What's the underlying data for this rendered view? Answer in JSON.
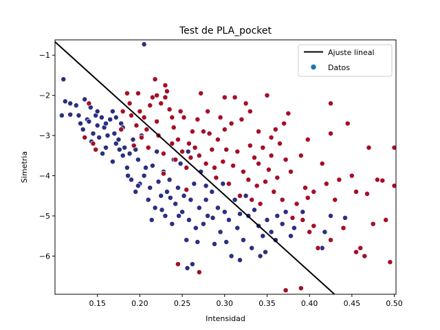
{
  "chart_data": {
    "type": "scatter",
    "title": "Test de PLA_pocket",
    "xlabel": "Intensidad",
    "ylabel": "Simetria",
    "xlim": [
      0.1,
      0.502
    ],
    "ylim": [
      -6.95,
      -0.62
    ],
    "x_ticks": [
      0.15,
      0.2,
      0.25,
      0.3,
      0.35,
      0.4,
      0.45,
      0.5
    ],
    "x_tick_labels": [
      "0.15",
      "0.20",
      "0.25",
      "0.30",
      "0.35",
      "0.40",
      "0.45",
      "0.50"
    ],
    "y_ticks": [
      -1,
      -2,
      -3,
      -4,
      -5,
      -6
    ],
    "y_tick_labels": [
      "−1",
      "−2",
      "−3",
      "−4",
      "−5",
      "−6"
    ],
    "grid": false,
    "legend_position": "top-right",
    "legend": [
      {
        "label": "Ajuste lineal",
        "kind": "line",
        "color": "#000000"
      },
      {
        "label": "Datos",
        "kind": "marker",
        "color": "#1f77b4"
      }
    ],
    "fit_line": {
      "x": [
        0.1,
        0.4295
      ],
      "y": [
        -0.67,
        -6.95
      ]
    },
    "colors": {
      "class_a": "#2b2f7f",
      "class_b": "#a50f26",
      "fit_line": "#000000",
      "edge": "#ffffff"
    },
    "series": [
      {
        "class": "class_a",
        "points": [
          [
            0.108,
            -2.5
          ],
          [
            0.118,
            -2.48
          ],
          [
            0.125,
            -2.25
          ],
          [
            0.128,
            -2.5
          ],
          [
            0.133,
            -2.85
          ],
          [
            0.138,
            -2.6
          ],
          [
            0.14,
            -2.65
          ],
          [
            0.142,
            -2.3
          ],
          [
            0.145,
            -2.95
          ],
          [
            0.148,
            -2.5
          ],
          [
            0.15,
            -2.75
          ],
          [
            0.152,
            -3.05
          ],
          [
            0.155,
            -2.55
          ],
          [
            0.158,
            -2.8
          ],
          [
            0.16,
            -3.3
          ],
          [
            0.162,
            -3.0
          ],
          [
            0.165,
            -2.6
          ],
          [
            0.168,
            -2.4
          ],
          [
            0.17,
            -2.95
          ],
          [
            0.172,
            -3.2
          ],
          [
            0.175,
            -3.1
          ],
          [
            0.178,
            -2.7
          ],
          [
            0.18,
            -3.5
          ],
          [
            0.182,
            -3.3
          ],
          [
            0.185,
            -3.8
          ],
          [
            0.188,
            -3.45
          ],
          [
            0.19,
            -4.1
          ],
          [
            0.192,
            -3.1
          ],
          [
            0.195,
            -4.4
          ],
          [
            0.198,
            -3.6
          ],
          [
            0.2,
            -4.2
          ],
          [
            0.202,
            -3.0
          ],
          [
            0.205,
            -4.0
          ],
          [
            0.207,
            -3.8
          ],
          [
            0.21,
            -4.6
          ],
          [
            0.212,
            -4.3
          ],
          [
            0.214,
            -5.1
          ],
          [
            0.218,
            -4.8
          ],
          [
            0.22,
            -3.4
          ],
          [
            0.222,
            -4.15
          ],
          [
            0.225,
            -4.5
          ],
          [
            0.228,
            -3.9
          ],
          [
            0.23,
            -5.0
          ],
          [
            0.232,
            -4.4
          ],
          [
            0.235,
            -4.1
          ],
          [
            0.238,
            -5.2
          ],
          [
            0.24,
            -3.6
          ],
          [
            0.242,
            -4.7
          ],
          [
            0.245,
            -4.3
          ],
          [
            0.248,
            -3.7
          ],
          [
            0.25,
            -4.9
          ],
          [
            0.252,
            -4.5
          ],
          [
            0.255,
            -5.6
          ],
          [
            0.257,
            -3.4
          ],
          [
            0.258,
            -5.1
          ],
          [
            0.26,
            -4.6
          ],
          [
            0.262,
            -6.2
          ],
          [
            0.264,
            -4.2
          ],
          [
            0.266,
            -5.3
          ],
          [
            0.27,
            -4.8
          ],
          [
            0.272,
            -3.9
          ],
          [
            0.275,
            -5.2
          ],
          [
            0.278,
            -4.6
          ],
          [
            0.28,
            -5.0
          ],
          [
            0.285,
            -4.4
          ],
          [
            0.288,
            -5.7
          ],
          [
            0.292,
            -4.8
          ],
          [
            0.295,
            -5.4
          ],
          [
            0.298,
            -4.2
          ],
          [
            0.3,
            -4.9
          ],
          [
            0.305,
            -5.1
          ],
          [
            0.308,
            -6.0
          ],
          [
            0.312,
            -4.6
          ],
          [
            0.315,
            -5.3
          ],
          [
            0.318,
            -4.95
          ],
          [
            0.322,
            -5.6
          ],
          [
            0.325,
            -4.5
          ],
          [
            0.328,
            -5.0
          ],
          [
            0.332,
            -5.8
          ],
          [
            0.335,
            -4.85
          ],
          [
            0.34,
            -5.25
          ],
          [
            0.345,
            -5.5
          ],
          [
            0.35,
            -5.1
          ],
          [
            0.355,
            -5.4
          ],
          [
            0.36,
            -5.6
          ],
          [
            0.362,
            -5.0
          ],
          [
            0.368,
            -5.2
          ],
          [
            0.372,
            -4.9
          ],
          [
            0.382,
            -5.3
          ],
          [
            0.392,
            -4.9
          ],
          [
            0.415,
            -5.8
          ],
          [
            0.418,
            -5.4
          ],
          [
            0.425,
            -5.0
          ],
          [
            0.442,
            -5.05
          ],
          [
            0.118,
            -2.2
          ],
          [
            0.135,
            -2.1
          ],
          [
            0.15,
            -2.4
          ],
          [
            0.16,
            -2.7
          ],
          [
            0.172,
            -2.55
          ],
          [
            0.18,
            -2.8
          ],
          [
            0.195,
            -3.35
          ],
          [
            0.205,
            -0.73
          ],
          [
            0.11,
            -1.6
          ],
          [
            0.112,
            -2.15
          ],
          [
            0.13,
            -2.7
          ],
          [
            0.143,
            -3.15
          ],
          [
            0.156,
            -3.45
          ],
          [
            0.168,
            -3.65
          ],
          [
            0.176,
            -3.35
          ],
          [
            0.186,
            -4.0
          ],
          [
            0.198,
            -4.25
          ],
          [
            0.215,
            -3.75
          ],
          [
            0.226,
            -4.85
          ],
          [
            0.236,
            -4.55
          ],
          [
            0.246,
            -5.0
          ],
          [
            0.256,
            -6.3
          ],
          [
            0.268,
            -5.65
          ],
          [
            0.278,
            -4.25
          ],
          [
            0.286,
            -5.05
          ],
          [
            0.302,
            -5.65
          ],
          [
            0.318,
            -6.1
          ],
          [
            0.342,
            -6.0
          ],
          [
            0.348,
            -5.9
          ],
          [
            0.378,
            -5.5
          ]
        ]
      },
      {
        "class": "class_b",
        "points": [
          [
            0.135,
            -3.05
          ],
          [
            0.14,
            -2.2
          ],
          [
            0.145,
            -3.2
          ],
          [
            0.148,
            -3.35
          ],
          [
            0.178,
            -2.85
          ],
          [
            0.18,
            -2.4
          ],
          [
            0.185,
            -1.95
          ],
          [
            0.188,
            -2.2
          ],
          [
            0.19,
            -2.5
          ],
          [
            0.193,
            -3.25
          ],
          [
            0.196,
            -2.75
          ],
          [
            0.198,
            -1.95
          ],
          [
            0.2,
            -2.4
          ],
          [
            0.202,
            -3.05
          ],
          [
            0.205,
            -2.55
          ],
          [
            0.208,
            -2.85
          ],
          [
            0.21,
            -3.3
          ],
          [
            0.212,
            -2.25
          ],
          [
            0.215,
            -2.05
          ],
          [
            0.218,
            -1.6
          ],
          [
            0.22,
            -2.65
          ],
          [
            0.222,
            -3.0
          ],
          [
            0.225,
            -2.2
          ],
          [
            0.228,
            -3.45
          ],
          [
            0.23,
            -2.05
          ],
          [
            0.232,
            -1.9
          ],
          [
            0.235,
            -2.35
          ],
          [
            0.238,
            -3.2
          ],
          [
            0.24,
            -2.8
          ],
          [
            0.242,
            -3.6
          ],
          [
            0.245,
            -3.1
          ],
          [
            0.248,
            -2.4
          ],
          [
            0.25,
            -3.4
          ],
          [
            0.252,
            -2.55
          ],
          [
            0.255,
            -3.8
          ],
          [
            0.258,
            -3.2
          ],
          [
            0.26,
            -3.55
          ],
          [
            0.262,
            -2.9
          ],
          [
            0.265,
            -3.3
          ],
          [
            0.268,
            -2.6
          ],
          [
            0.27,
            -3.5
          ],
          [
            0.272,
            -1.95
          ],
          [
            0.275,
            -2.9
          ],
          [
            0.278,
            -3.7
          ],
          [
            0.28,
            -2.4
          ],
          [
            0.282,
            -2.95
          ],
          [
            0.285,
            -3.35
          ],
          [
            0.288,
            -3.8
          ],
          [
            0.29,
            -4.05
          ],
          [
            0.292,
            -3.1
          ],
          [
            0.295,
            -2.55
          ],
          [
            0.298,
            -3.65
          ],
          [
            0.3,
            -2.85
          ],
          [
            0.302,
            -3.35
          ],
          [
            0.305,
            -4.2
          ],
          [
            0.308,
            -2.7
          ],
          [
            0.31,
            -3.75
          ],
          [
            0.312,
            -2.05
          ],
          [
            0.315,
            -3.4
          ],
          [
            0.318,
            -4.5
          ],
          [
            0.32,
            -2.6
          ],
          [
            0.322,
            -3.9
          ],
          [
            0.325,
            -2.2
          ],
          [
            0.328,
            -4.1
          ],
          [
            0.33,
            -3.25
          ],
          [
            0.332,
            -4.6
          ],
          [
            0.335,
            -3.55
          ],
          [
            0.338,
            -4.25
          ],
          [
            0.34,
            -2.9
          ],
          [
            0.342,
            -4.7
          ],
          [
            0.345,
            -3.3
          ],
          [
            0.348,
            -4.15
          ],
          [
            0.35,
            -2.0
          ],
          [
            0.352,
            -3.85
          ],
          [
            0.355,
            -3.5
          ],
          [
            0.358,
            -4.4
          ],
          [
            0.36,
            -2.85
          ],
          [
            0.362,
            -4.05
          ],
          [
            0.365,
            -3.2
          ],
          [
            0.368,
            -4.6
          ],
          [
            0.37,
            -2.7
          ],
          [
            0.372,
            -3.6
          ],
          [
            0.375,
            -2.45
          ],
          [
            0.378,
            -3.9
          ],
          [
            0.38,
            -5.05
          ],
          [
            0.385,
            -4.7
          ],
          [
            0.39,
            -3.5
          ],
          [
            0.392,
            -5.1
          ],
          [
            0.395,
            -4.3
          ],
          [
            0.398,
            -3.1
          ],
          [
            0.4,
            -5.4
          ],
          [
            0.405,
            -4.4
          ],
          [
            0.41,
            -5.8
          ],
          [
            0.415,
            -3.7
          ],
          [
            0.42,
            -4.2
          ],
          [
            0.425,
            -2.95
          ],
          [
            0.43,
            -4.6
          ],
          [
            0.435,
            -4.1
          ],
          [
            0.44,
            -5.3
          ],
          [
            0.445,
            -2.7
          ],
          [
            0.45,
            -4.0
          ],
          [
            0.455,
            -4.4
          ],
          [
            0.46,
            -5.8
          ],
          [
            0.465,
            -6.0
          ],
          [
            0.47,
            -3.3
          ],
          [
            0.475,
            -5.2
          ],
          [
            0.48,
            -4.1
          ],
          [
            0.49,
            -5.1
          ],
          [
            0.495,
            -6.15
          ],
          [
            0.5,
            -3.3
          ],
          [
            0.5,
            -4.25
          ],
          [
            0.372,
            -6.85
          ],
          [
            0.39,
            -6.8
          ],
          [
            0.27,
            -6.4
          ],
          [
            0.245,
            -6.2
          ],
          [
            0.22,
            -2.0
          ],
          [
            0.23,
            -1.75
          ],
          [
            0.238,
            -2.55
          ],
          [
            0.228,
            -3.95
          ],
          [
            0.255,
            -4.35
          ],
          [
            0.3,
            -2.05
          ],
          [
            0.34,
            -3.7
          ],
          [
            0.355,
            -3.05
          ],
          [
            0.33,
            -2.4
          ],
          [
            0.398,
            -4.55
          ],
          [
            0.405,
            -5.25
          ],
          [
            0.425,
            -2.2
          ],
          [
            0.468,
            -4.45
          ],
          [
            0.486,
            -4.12
          ],
          [
            0.455,
            -5.9
          ],
          [
            0.425,
            -5.6
          ]
        ]
      }
    ]
  }
}
